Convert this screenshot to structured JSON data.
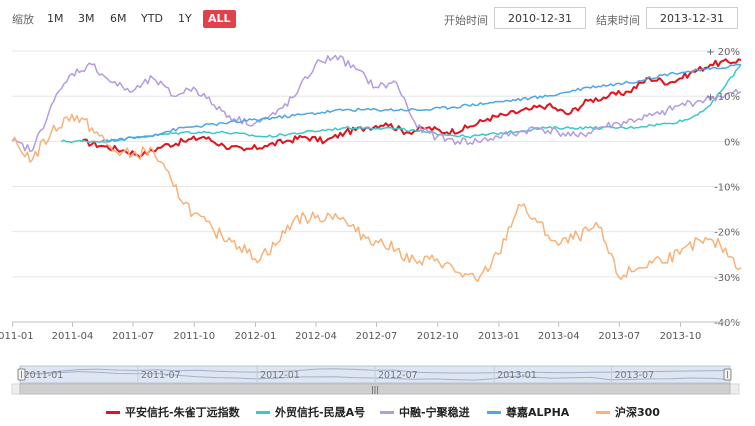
{
  "toolbar": {
    "zoom_label": "缩放",
    "zoom_buttons": [
      "1M",
      "3M",
      "6M",
      "YTD",
      "1Y",
      "ALL"
    ],
    "active_zoom": "ALL",
    "start_label": "开始时间",
    "start_value": "2010-12-31",
    "end_label": "结束时间",
    "end_value": "2013-12-31"
  },
  "colors": {
    "series1": "#e0141e",
    "series2": "#3cc8c8",
    "series3": "#b49be0",
    "series4": "#4ea6e6",
    "series5": "#f7b27a",
    "grid": "#e6e6e6",
    "navigator_fill": "#dfe6f2"
  },
  "navigator": {
    "labels": [
      "2011-01",
      "2011-07",
      "2012-01",
      "2012-07",
      "2013-01",
      "2013-07"
    ],
    "handle_glyph": "|||"
  },
  "chart_data": {
    "type": "line",
    "xlim": [
      "2010-12-31",
      "2013-12-31"
    ],
    "ylim": [
      -40,
      22
    ],
    "x_ticks": [
      "2011-01",
      "2011-04",
      "2011-07",
      "2011-10",
      "2012-01",
      "2012-04",
      "2012-07",
      "2012-10",
      "2013-01",
      "2013-04",
      "2013-07",
      "2013-10"
    ],
    "y_ticks": [
      20,
      10,
      0,
      -10,
      -20,
      -30,
      -40
    ],
    "y_tick_labels": [
      "+ 20%",
      "+ 10%",
      "0%",
      "-10%",
      "-20%",
      "-30%",
      "-40%"
    ],
    "series": [
      {
        "name": "平安信托-朱雀丁远指数",
        "color": "#e0141e",
        "x": [
          "2011-04-15",
          "2011-05-15",
          "2011-06-15",
          "2011-07-15",
          "2011-08-15",
          "2011-09-15",
          "2011-10-15",
          "2011-11-15",
          "2011-12-15",
          "2012-01-15",
          "2012-02-15",
          "2012-03-15",
          "2012-04-15",
          "2012-05-15",
          "2012-06-15",
          "2012-07-15",
          "2012-08-15",
          "2012-09-15",
          "2012-10-15",
          "2012-11-15",
          "2012-12-15",
          "2013-01-15",
          "2013-02-15",
          "2013-03-15",
          "2013-04-15",
          "2013-05-15",
          "2013-06-15",
          "2013-07-15",
          "2013-08-15",
          "2013-09-15",
          "2013-10-15",
          "2013-11-15",
          "2013-12-31"
        ],
        "values": [
          0,
          -1,
          -2,
          -3,
          -1,
          0,
          1,
          -1,
          -2,
          -1,
          0,
          1,
          0,
          2,
          3,
          4,
          2,
          3,
          2,
          3,
          5,
          6,
          7,
          8,
          6,
          9,
          10,
          11,
          14,
          13,
          15,
          17,
          18
        ]
      },
      {
        "name": "外贸信托-民晟A号",
        "color": "#3cc8c8",
        "x": [
          "2011-03-15",
          "2011-05-15",
          "2011-07-15",
          "2011-09-15",
          "2011-11-15",
          "2012-01-15",
          "2012-03-15",
          "2012-05-15",
          "2012-07-15",
          "2012-09-15",
          "2012-11-15",
          "2013-01-15",
          "2013-03-15",
          "2013-05-15",
          "2013-07-15",
          "2013-09-15",
          "2013-10-15",
          "2013-11-15",
          "2013-12-31"
        ],
        "values": [
          0,
          0,
          1,
          2,
          2,
          1,
          2,
          3,
          3,
          2,
          1,
          2,
          3,
          3,
          3,
          4,
          5,
          8,
          17
        ]
      },
      {
        "name": "中融-宁聚稳进",
        "color": "#b49be0",
        "x": [
          "2010-12-31",
          "2011-01-31",
          "2011-02-28",
          "2011-03-31",
          "2011-04-30",
          "2011-05-31",
          "2011-06-30",
          "2011-07-31",
          "2011-08-31",
          "2011-09-30",
          "2011-10-31",
          "2011-11-30",
          "2011-12-31",
          "2012-01-31",
          "2012-02-29",
          "2012-03-31",
          "2012-04-30",
          "2012-05-31",
          "2012-06-30",
          "2012-07-31",
          "2012-08-31",
          "2012-09-30",
          "2012-10-31",
          "2012-11-30",
          "2012-12-31",
          "2013-01-31",
          "2013-02-28",
          "2013-03-31",
          "2013-04-30",
          "2013-05-31",
          "2013-06-30",
          "2013-07-31",
          "2013-08-31",
          "2013-09-30",
          "2013-10-31",
          "2013-11-30",
          "2013-12-31"
        ],
        "values": [
          0,
          -2,
          8,
          15,
          17,
          13,
          11,
          14,
          10,
          12,
          8,
          5,
          4,
          6,
          10,
          17,
          19,
          16,
          12,
          13,
          3,
          1,
          0,
          0,
          1,
          2,
          3,
          2,
          1,
          3,
          4,
          5,
          6,
          8,
          9,
          10,
          11
        ]
      },
      {
        "name": "尊嘉ALPHA",
        "color": "#4ea6e6",
        "x": [
          "2011-05-15",
          "2011-07-15",
          "2011-09-15",
          "2011-11-15",
          "2012-01-15",
          "2012-03-15",
          "2012-05-15",
          "2012-07-15",
          "2012-09-15",
          "2012-11-15",
          "2013-01-15",
          "2013-03-15",
          "2013-05-15",
          "2013-07-15",
          "2013-09-15",
          "2013-11-15",
          "2013-12-31"
        ],
        "values": [
          0,
          1,
          3,
          4,
          5,
          6,
          7,
          7,
          7,
          8,
          9,
          10,
          12,
          13,
          15,
          16,
          17
        ]
      },
      {
        "name": "沪深300",
        "color": "#f7b27a",
        "x": [
          "2010-12-31",
          "2011-01-31",
          "2011-02-28",
          "2011-03-31",
          "2011-04-30",
          "2011-05-31",
          "2011-06-30",
          "2011-07-31",
          "2011-08-31",
          "2011-09-30",
          "2011-10-31",
          "2011-11-30",
          "2011-12-31",
          "2012-01-31",
          "2012-02-29",
          "2012-03-31",
          "2012-04-30",
          "2012-05-31",
          "2012-06-30",
          "2012-07-31",
          "2012-08-31",
          "2012-09-30",
          "2012-10-31",
          "2012-11-30",
          "2012-12-31",
          "2013-01-31",
          "2013-02-28",
          "2013-03-31",
          "2013-04-30",
          "2013-05-31",
          "2013-06-30",
          "2013-07-31",
          "2013-08-31",
          "2013-09-30",
          "2013-10-31",
          "2013-11-30",
          "2013-12-31"
        ],
        "values": [
          0,
          -4,
          2,
          6,
          3,
          -2,
          -3,
          -2,
          -10,
          -16,
          -20,
          -22,
          -26,
          -23,
          -17,
          -17,
          -16,
          -20,
          -22,
          -24,
          -27,
          -26,
          -29,
          -31,
          -25,
          -14,
          -18,
          -23,
          -21,
          -19,
          -30,
          -28,
          -26,
          -25,
          -22,
          -23,
          -28
        ]
      }
    ]
  }
}
